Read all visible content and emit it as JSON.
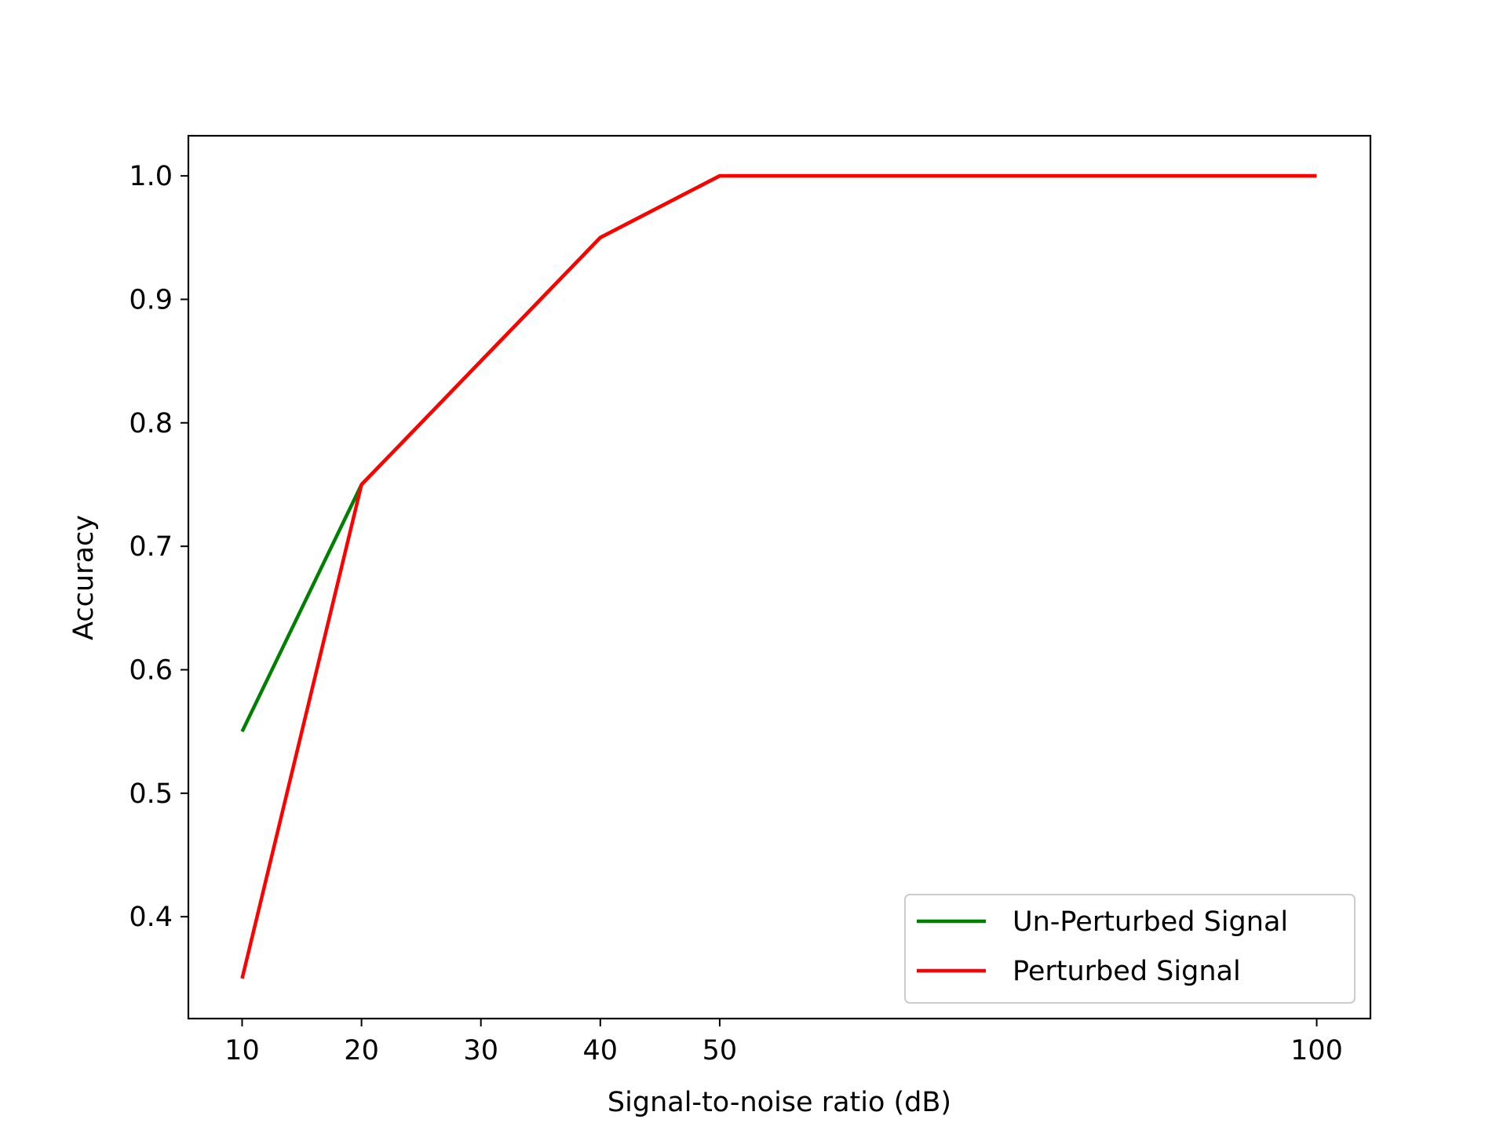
{
  "chart_data": {
    "type": "line",
    "title": "",
    "xlabel": "Signal-to-noise ratio (dB)",
    "ylabel": "Accuracy",
    "x": [
      10,
      20,
      40,
      50,
      100
    ],
    "x_ticks": [
      10,
      20,
      30,
      40,
      50,
      100
    ],
    "x_tick_labels": [
      "10",
      "20",
      "30",
      "40",
      "50",
      "100"
    ],
    "y_ticks": [
      0.4,
      0.5,
      0.6,
      0.7,
      0.8,
      0.9,
      1.0
    ],
    "y_tick_labels": [
      "0.4",
      "0.5",
      "0.6",
      "0.7",
      "0.8",
      "0.9",
      "1.0"
    ],
    "xlim": [
      5.5,
      104.5
    ],
    "ylim": [
      0.3175,
      1.0325
    ],
    "grid": false,
    "legend_position": "lower right",
    "series": [
      {
        "name": "Un-Perturbed Signal",
        "color": "#008000",
        "values": [
          0.55,
          0.75,
          0.95,
          1.0,
          1.0
        ]
      },
      {
        "name": "Perturbed Signal",
        "color": "#ff0000",
        "values": [
          0.35,
          0.75,
          0.95,
          1.0,
          1.0
        ]
      }
    ]
  }
}
